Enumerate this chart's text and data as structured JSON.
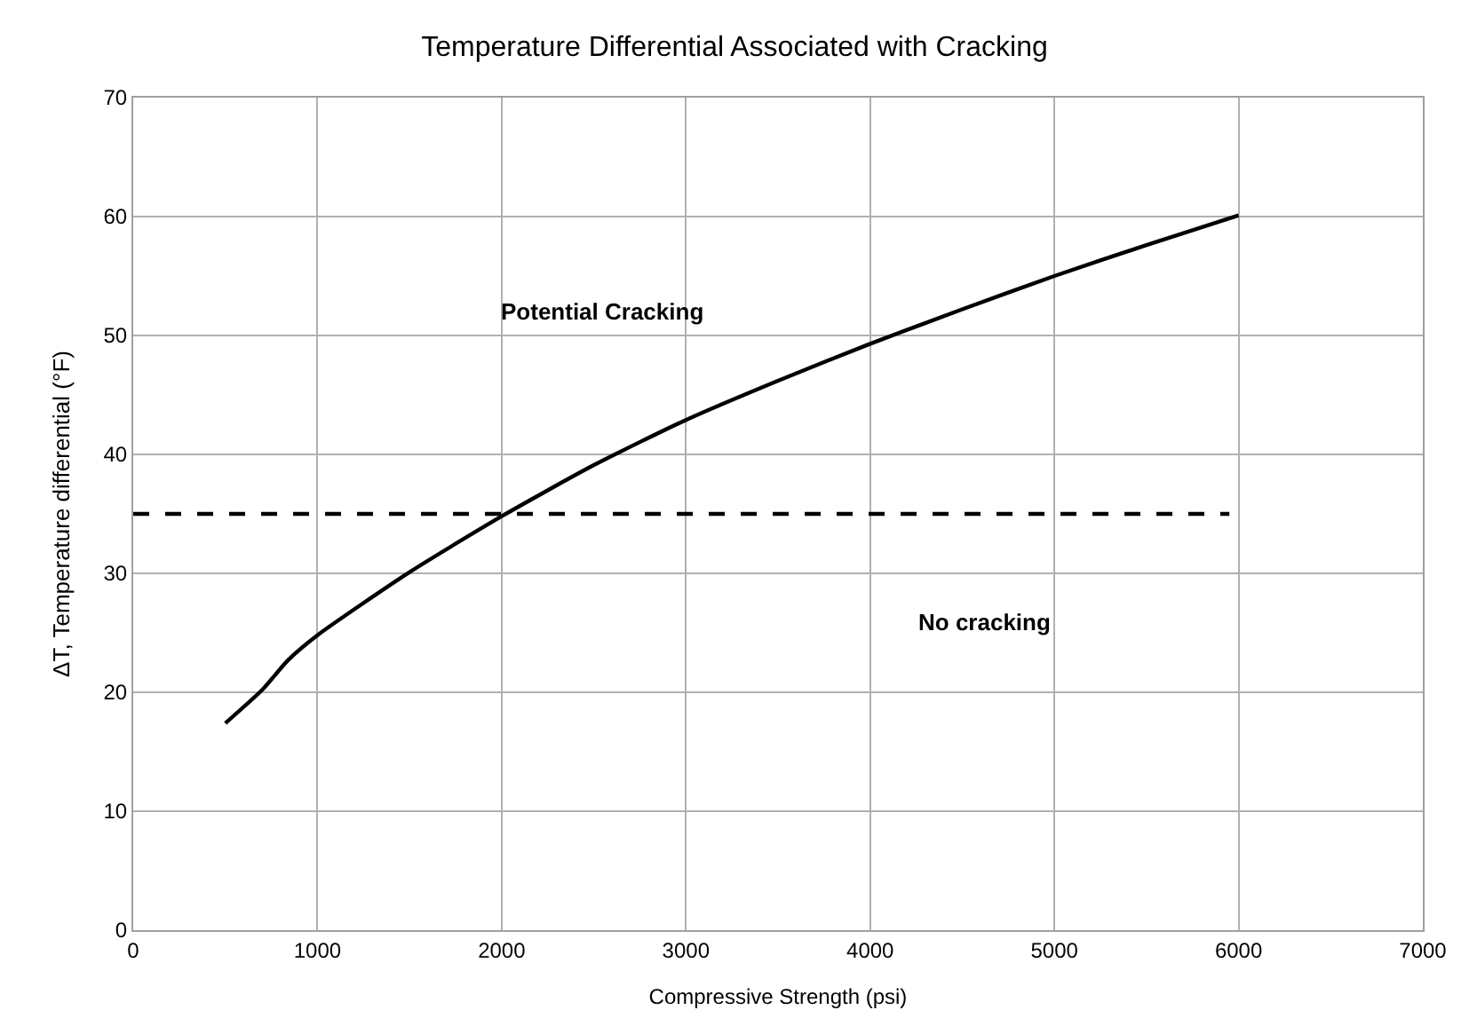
{
  "chart_data": {
    "type": "line",
    "title": "Temperature Differential Associated with Cracking",
    "xlabel": "Compressive Strength (psi)",
    "ylabel": "ΔT, Temperature differential (°F)",
    "xlim": [
      0,
      7000
    ],
    "xticks": [
      0,
      1000,
      2000,
      3000,
      4000,
      5000,
      6000,
      7000
    ],
    "ylim": [
      0,
      70
    ],
    "yticks": [
      0,
      10,
      20,
      30,
      40,
      50,
      60,
      70
    ],
    "grid": true,
    "legend": false,
    "series": [
      {
        "color": "#000000",
        "line_style": "solid",
        "x": [
          500,
          700,
          840,
          1000,
          1500,
          2000,
          2500,
          3000,
          3500,
          4000,
          4500,
          5000,
          5500,
          6000
        ],
        "values": [
          17.4,
          20.2,
          22.7,
          24.8,
          30.1,
          34.8,
          39.1,
          42.9,
          46.2,
          49.3,
          52.2,
          55.0,
          57.6,
          60.1
        ]
      },
      {
        "color": "#000000",
        "line_style": "dashed",
        "x": [
          0,
          5950
        ],
        "values": [
          35,
          35
        ]
      }
    ],
    "annotations": [
      "Potential Cracking",
      "No cracking"
    ]
  }
}
